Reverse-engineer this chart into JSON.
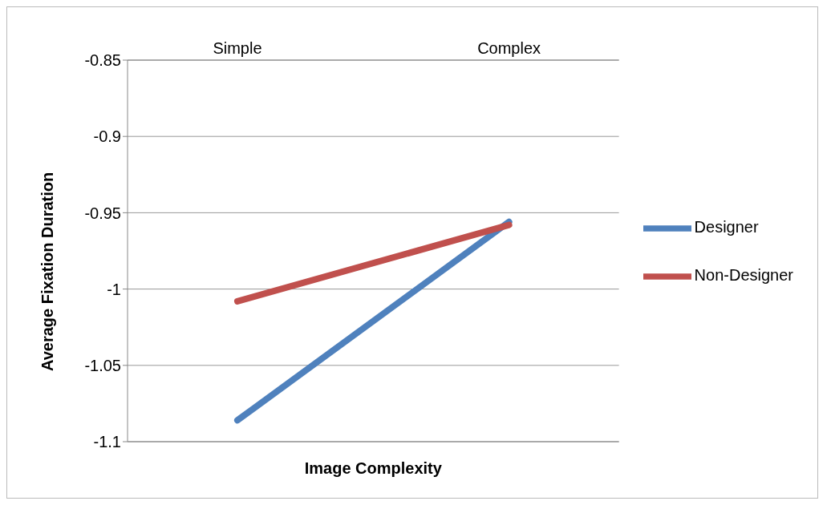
{
  "chart_data": {
    "type": "line",
    "xlabel": "Image Complexity",
    "ylabel": "Average Fixation Duration",
    "categories": [
      "Simple",
      "Complex"
    ],
    "series": [
      {
        "name": "Designer",
        "color": "#4f81bd",
        "values": [
          -1.086,
          -0.956
        ]
      },
      {
        "name": "Non-Designer",
        "color": "#c0504d",
        "values": [
          -1.008,
          -0.958
        ]
      }
    ],
    "ylim": [
      -1.1,
      -0.85
    ],
    "yticks": [
      -1.1,
      -1.05,
      -1,
      -0.95,
      -0.9,
      -0.85
    ],
    "grid": "y",
    "legend": "right",
    "marker": "none",
    "line_style": "solid"
  }
}
